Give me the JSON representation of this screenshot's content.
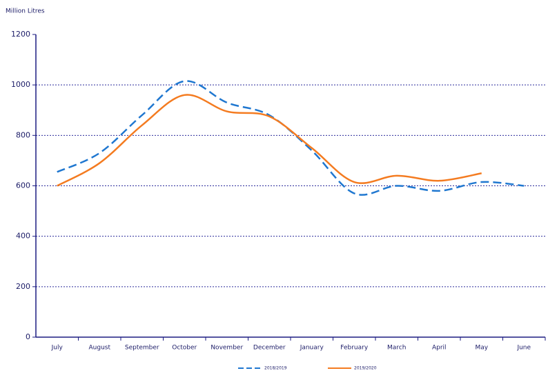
{
  "chart_data": {
    "type": "line",
    "y_axis_label": "Million Litres",
    "categories": [
      "July",
      "August",
      "September",
      "October",
      "November",
      "December",
      "January",
      "February",
      "March",
      "April",
      "May",
      "June"
    ],
    "series": [
      {
        "name": "2018/2019",
        "color": "#1f77d0",
        "dashed": true,
        "values": [
          655,
          730,
          880,
          1015,
          930,
          880,
          740,
          570,
          600,
          580,
          615,
          600
        ]
      },
      {
        "name": "2019/2020",
        "color": "#f47b20",
        "dashed": false,
        "values": [
          600,
          690,
          840,
          960,
          895,
          875,
          750,
          615,
          640,
          620,
          650,
          null
        ]
      }
    ],
    "ylim": [
      0,
      1200
    ],
    "yticks": [
      0,
      200,
      400,
      600,
      800,
      1000,
      1200
    ],
    "grid": true,
    "smooth": true
  }
}
